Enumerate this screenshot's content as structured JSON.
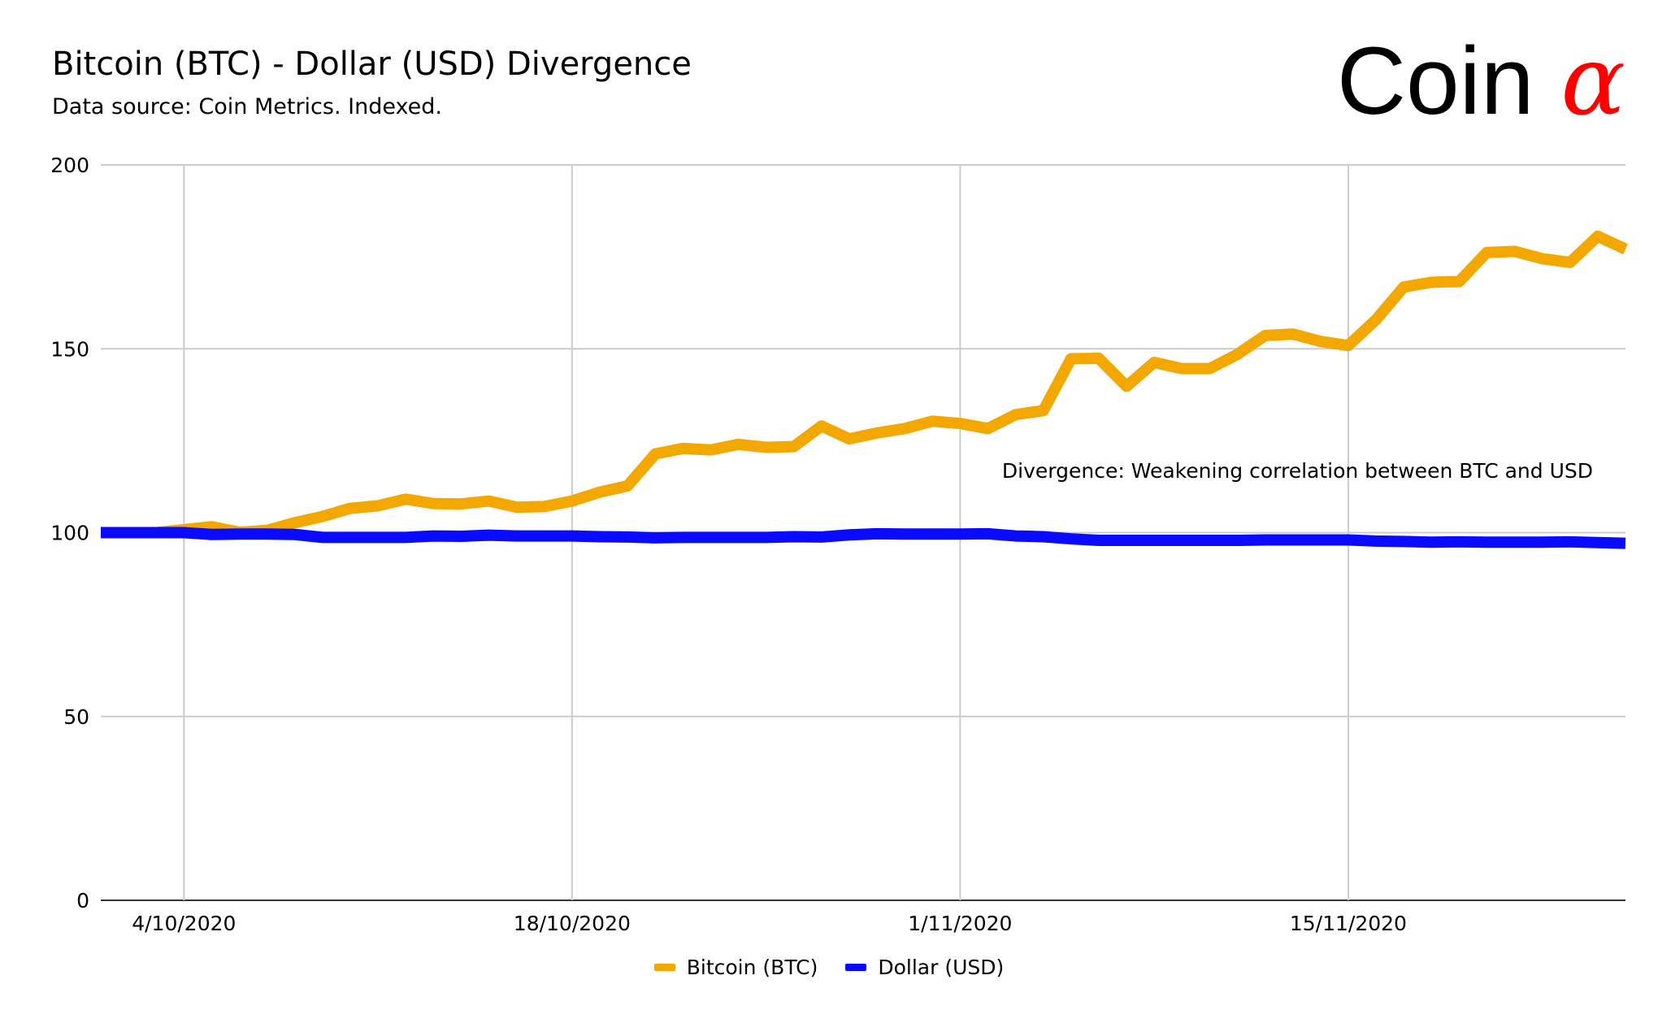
{
  "header": {
    "title": "Bitcoin (BTC) - Dollar (USD) Divergence",
    "subtitle": "Data source: Coin Metrics. Indexed.",
    "logo_text": "Coin",
    "logo_symbol": "α"
  },
  "colors": {
    "btc": "#F2A800",
    "usd": "#0A0AFF",
    "grid": "#CCCCCC",
    "logo_accent": "#FF0000"
  },
  "chart_data": {
    "type": "line",
    "title": "Bitcoin (BTC) - Dollar (USD) Divergence",
    "subtitle": "Data source: Coin Metrics. Indexed.",
    "xlabel": "",
    "ylabel": "",
    "ylim": [
      0,
      200
    ],
    "yticks": [
      "0",
      "50",
      "100",
      "150",
      "200"
    ],
    "xticks": [
      "4/10/2020",
      "18/10/2020",
      "1/11/2020",
      "15/11/2020"
    ],
    "x_start": "2020-10-01",
    "x_end": "2020-11-25",
    "annotation": "Divergence: Weakening correlation between BTC and USD",
    "grid": true,
    "legend_position": "bottom",
    "series": [
      {
        "name": "Bitcoin (BTC)",
        "values": [
          100,
          100,
          100,
          100.8,
          101.6,
          100.1,
          100.6,
          102.7,
          104.4,
          106.6,
          107.3,
          109.1,
          107.9,
          107.8,
          108.6,
          106.9,
          107.1,
          108.6,
          111.0,
          112.7,
          121.4,
          122.9,
          122.5,
          124.0,
          123.2,
          123.4,
          129.0,
          125.5,
          127.1,
          128.3,
          130.3,
          129.7,
          128.3,
          132.1,
          133.2,
          147.3,
          147.4,
          139.8,
          146.3,
          144.6,
          144.6,
          148.5,
          153.6,
          154.0,
          152.0,
          150.9,
          157.9,
          166.8,
          168.1,
          168.3,
          176.2,
          176.5,
          174.5,
          173.5,
          180.6,
          177.1
        ]
      },
      {
        "name": "Dollar (USD)",
        "values": [
          100,
          100,
          100,
          100,
          99.5,
          99.6,
          99.6,
          99.5,
          98.7,
          98.7,
          98.7,
          98.7,
          99.1,
          99,
          99.3,
          99.1,
          99.1,
          99.1,
          98.9,
          98.8,
          98.6,
          98.7,
          98.7,
          98.7,
          98.7,
          98.9,
          98.8,
          99.4,
          99.7,
          99.6,
          99.6,
          99.6,
          99.7,
          99.1,
          98.9,
          98.3,
          97.9,
          97.9,
          97.9,
          97.9,
          97.9,
          97.9,
          98,
          98,
          98,
          98,
          97.7,
          97.6,
          97.4,
          97.5,
          97.4,
          97.4,
          97.4,
          97.5,
          97.3,
          97.1
        ]
      }
    ]
  },
  "legend": {
    "items": [
      {
        "label": "Bitcoin (BTC)"
      },
      {
        "label": "Dollar (USD)"
      }
    ]
  }
}
